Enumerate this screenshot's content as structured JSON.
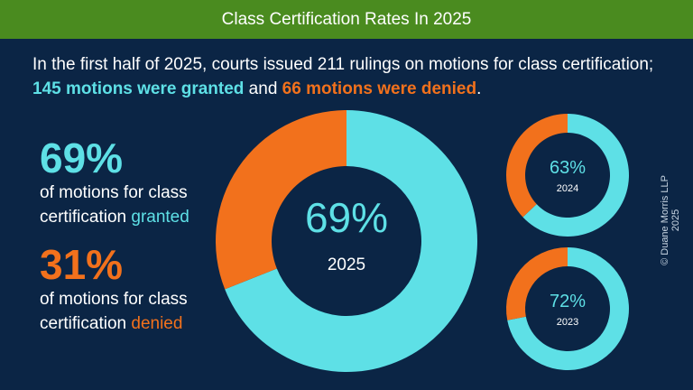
{
  "header": {
    "title": "Class Certification Rates In 2025"
  },
  "intro": {
    "text_before": "In the first half of 2025, courts issued 211 rulings on motions for class certification; ",
    "granted_phrase": "145 motions were granted",
    "text_middle": " and ",
    "denied_phrase": "66 motions were denied",
    "text_after": "."
  },
  "stats": {
    "granted": {
      "percent": "69%",
      "line1": "of motions for class",
      "line2_prefix": "certification ",
      "line2_word": "granted"
    },
    "denied": {
      "percent": "31%",
      "line1": "of motions for class",
      "line2_prefix": "certification ",
      "line2_word": "denied"
    }
  },
  "credit": "© Duane Morris LLP 2025",
  "colors": {
    "granted": "#5ee0e6",
    "denied": "#f2711c",
    "background": "#0b2545",
    "header": "#4a8b1f"
  },
  "chart_data": [
    {
      "type": "pie",
      "year": "2025",
      "center_label": "69%",
      "slices": [
        {
          "label": "granted",
          "value": 69
        },
        {
          "label": "denied",
          "value": 31
        }
      ]
    },
    {
      "type": "pie",
      "year": "2024",
      "center_label": "63%",
      "slices": [
        {
          "label": "granted",
          "value": 63
        },
        {
          "label": "denied",
          "value": 37
        }
      ]
    },
    {
      "type": "pie",
      "year": "2023",
      "center_label": "72%",
      "slices": [
        {
          "label": "granted",
          "value": 72
        },
        {
          "label": "denied",
          "value": 28
        }
      ]
    }
  ]
}
